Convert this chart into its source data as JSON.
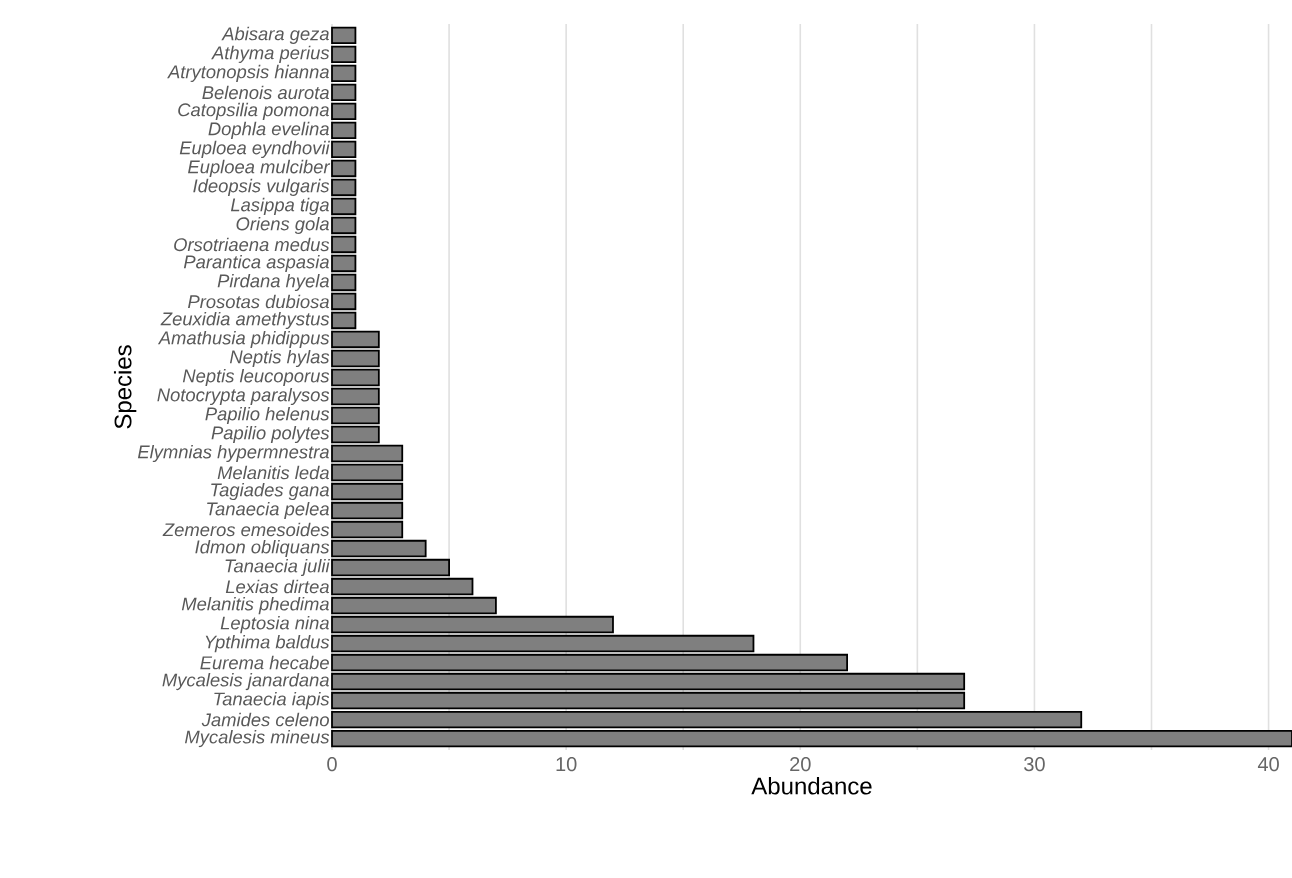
{
  "chart_data": {
    "type": "bar",
    "orientation": "horizontal",
    "xlabel": "Abundance",
    "ylabel": "Species",
    "categories": [
      "Abisara geza",
      "Athyma perius",
      "Atrytonopsis hianna",
      "Belenois aurota",
      "Catopsilia pomona",
      "Dophla evelina",
      "Euploea eyndhovii",
      "Euploea mulciber",
      "Ideopsis vulgaris",
      "Lasippa tiga",
      "Oriens gola",
      "Orsotriaena medus",
      "Parantica aspasia",
      "Pirdana hyela",
      "Prosotas dubiosa",
      "Zeuxidia amethystus",
      "Amathusia phidippus",
      "Neptis hylas",
      "Neptis leucoporus",
      "Notocrypta paralysos",
      "Papilio helenus",
      "Papilio polytes",
      "Elymnias hypermnestra",
      "Melanitis leda",
      "Tagiades gana",
      "Tanaecia pelea",
      "Zemeros emesoides",
      "Idmon obliquans",
      "Tanaecia julii",
      "Lexias dirtea",
      "Melanitis phedima",
      "Leptosia nina",
      "Ypthima baldus",
      "Eurema hecabe",
      "Mycalesis janardana",
      "Tanaecia iapis",
      "Jamides celeno",
      "Mycalesis mineus"
    ],
    "values": [
      1,
      1,
      1,
      1,
      1,
      1,
      1,
      1,
      1,
      1,
      1,
      1,
      1,
      1,
      1,
      1,
      2,
      2,
      2,
      2,
      2,
      2,
      3,
      3,
      3,
      3,
      3,
      4,
      5,
      6,
      7,
      12,
      18,
      22,
      27,
      27,
      32,
      41
    ],
    "color": "#7f7f7f",
    "xlim": [
      0,
      41
    ],
    "xticks": [
      0,
      {
        "value": 5,
        "label": null
      },
      10,
      {
        "value": 15,
        "label": null
      },
      20,
      {
        "value": 25,
        "label": null
      },
      30,
      {
        "value": 35,
        "label": null
      },
      40
    ],
    "grid": "x"
  }
}
